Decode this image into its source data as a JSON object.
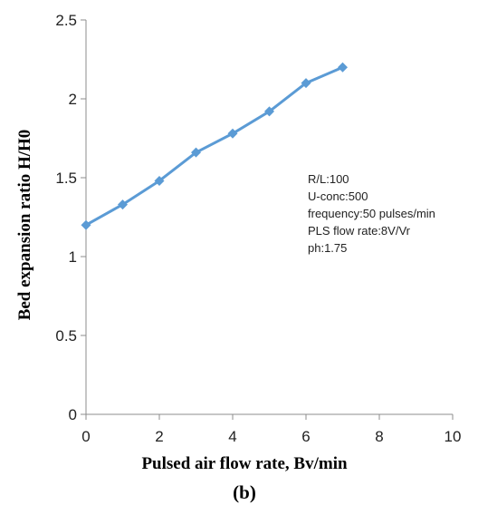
{
  "chart_data": {
    "type": "line",
    "title": "",
    "xlabel": "Pulsed air flow rate, Bv/min",
    "ylabel": "Bed expansion ratio H/H0",
    "panel_label": "(b)",
    "xlim": [
      0,
      10
    ],
    "ylim": [
      0,
      2.5
    ],
    "x_ticks": [
      0,
      2,
      4,
      6,
      8,
      10
    ],
    "y_ticks": [
      0,
      0.5,
      1,
      1.5,
      2,
      2.5
    ],
    "x_tick_labels": [
      "0",
      "2",
      "4",
      "6",
      "8",
      "10"
    ],
    "y_tick_labels": [
      "0",
      "0.5",
      "1",
      "1.5",
      "2",
      "2.5"
    ],
    "grid": false,
    "series": [
      {
        "x": [
          0,
          1,
          2,
          3,
          4,
          5,
          6,
          7
        ],
        "y": [
          1.2,
          1.33,
          1.48,
          1.66,
          1.78,
          1.92,
          2.1,
          2.2
        ],
        "color": "#5b9bd5",
        "marker": "diamond"
      }
    ],
    "annotations": [
      "R/L:100",
      "U-conc:500",
      "frequency:50 pulses/min",
      "PLS flow rate:8V/Vr",
      "ph:1.75"
    ]
  }
}
